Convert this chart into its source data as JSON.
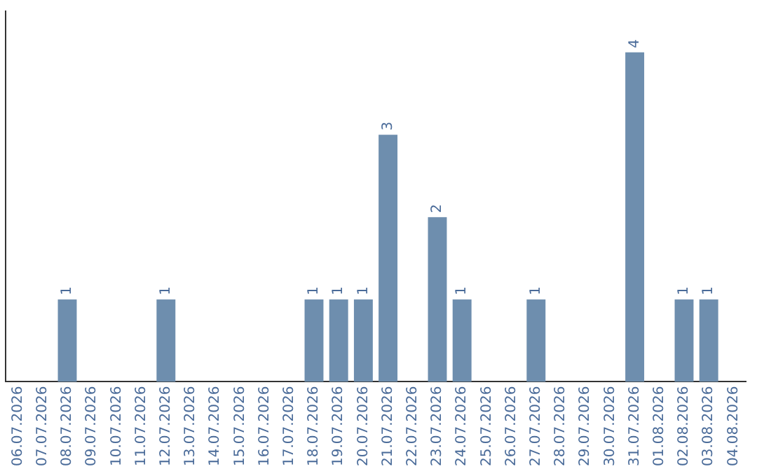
{
  "chart_data": {
    "type": "bar",
    "categories": [
      "06.07.2026",
      "07.07.2026",
      "08.07.2026",
      "09.07.2026",
      "10.07.2026",
      "11.07.2026",
      "12.07.2026",
      "13.07.2026",
      "14.07.2026",
      "15.07.2026",
      "16.07.2026",
      "17.07.2026",
      "18.07.2026",
      "19.07.2026",
      "20.07.2026",
      "21.07.2026",
      "22.07.2026",
      "23.07.2026",
      "24.07.2026",
      "25.07.2026",
      "26.07.2026",
      "27.07.2026",
      "28.07.2026",
      "29.07.2026",
      "30.07.2026",
      "31.07.2026",
      "01.08.2026",
      "02.08.2026",
      "03.08.2026",
      "04.08.2026"
    ],
    "values": [
      0,
      0,
      1,
      0,
      0,
      0,
      1,
      0,
      0,
      0,
      0,
      0,
      1,
      1,
      1,
      3,
      0,
      2,
      1,
      0,
      0,
      1,
      0,
      0,
      0,
      4,
      0,
      1,
      1,
      0
    ],
    "value_labels": [
      null,
      null,
      "1",
      null,
      null,
      null,
      "1",
      null,
      null,
      null,
      null,
      null,
      "1",
      "1",
      "1",
      "3",
      null,
      "2",
      "1",
      null,
      null,
      "1",
      null,
      null,
      null,
      "4",
      null,
      "1",
      "1",
      null
    ],
    "color": "#6e8eae",
    "tick_labels": "x",
    "grid": false,
    "legend": false
  }
}
